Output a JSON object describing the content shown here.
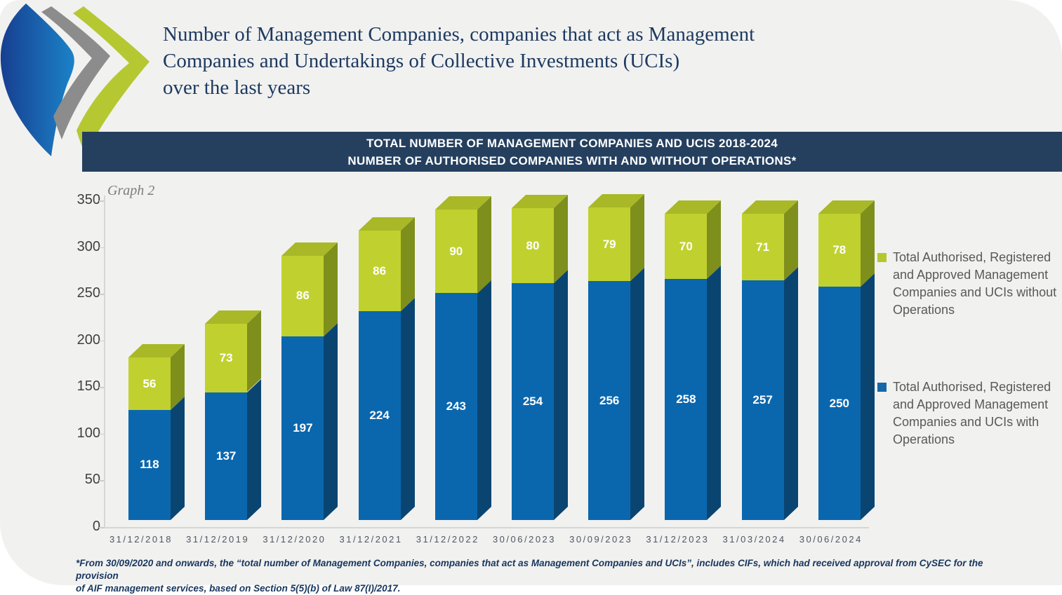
{
  "header": {
    "title": "Number of Management Companies, companies that act as Management\nCompanies and Undertakings of Collective Investments (UCIs)\nover the last years"
  },
  "banner": {
    "line1": "TOTAL NUMBER OF MANAGEMENT COMPANIES AND UCIS 2018-2024",
    "line2": "NUMBER OF AUTHORISED COMPANIES WITH AND WITHOUT OPERATIONS*"
  },
  "logo": {
    "shapes": [
      "blue-leaf-icon",
      "gray-chevron-icon",
      "green-chevron-icon"
    ],
    "colors": {
      "blue_dark": "#1a4898",
      "blue_light": "#1b7fc4",
      "gray": "#8c8c8c",
      "green": "#b5c832"
    }
  },
  "chart_data": {
    "type": "bar",
    "stacked": true,
    "title": "Graph 2",
    "categories": [
      "31/12/2018",
      "31/12/2019",
      "31/12/2020",
      "31/12/2021",
      "31/12/2022",
      "30/06/2023",
      "30/09/2023",
      "31/12/2023",
      "31/03/2024",
      "30/06/2024"
    ],
    "series": [
      {
        "name": "Total Authorised, Registered and Approved Management Companies and UCIs with Operations",
        "color": "#0a67ae",
        "side_color": "#0a4572",
        "values": [
          118,
          137,
          197,
          224,
          243,
          254,
          256,
          258,
          257,
          250
        ]
      },
      {
        "name": "Total Authorised, Registered and Approved Management Companies and UCIs without Operations",
        "color": "#c0d12f",
        "top_color": "#a8b827",
        "side_color": "#7f8f1c",
        "values": [
          56,
          73,
          86,
          86,
          90,
          80,
          79,
          70,
          71,
          78
        ]
      }
    ],
    "totals": [
      174,
      210,
      283,
      310,
      333,
      334,
      335,
      328,
      328,
      328
    ],
    "ylim": [
      0,
      350
    ],
    "ytick_step": 50,
    "grid": false,
    "legend_position": "right"
  },
  "legend": {
    "items": [
      {
        "label": "Total Authorised, Registered and Approved Management Companies and UCIs without Operations",
        "color": "#b6c72c"
      },
      {
        "label": "Total Authorised, Registered and Approved Management Companies and UCIs with Operations",
        "color": "#1467a9"
      }
    ]
  },
  "footnote": {
    "text": "*From 30/09/2020 and onwards, the “total number of Management Companies, companies that act as Management Companies and UCIs”, includes CIFs, which had received approval from CySEC for the provision\nof AIF management services, based on Section 5(5)(b) of Law 87(I)/2017."
  },
  "colors": {
    "page_bg": "#f1f1f0",
    "banner_bg": "#25405f",
    "title_navy": "#1d3a60",
    "axis_gray": "#d6d6d6"
  }
}
